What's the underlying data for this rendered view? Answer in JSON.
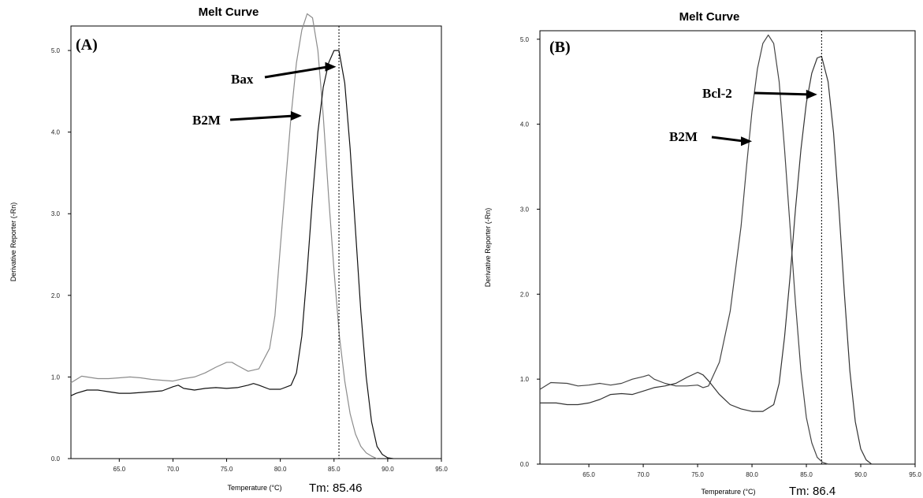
{
  "chart_data": [
    {
      "type": "line",
      "title": "Melt Curve",
      "panel_label": "(A)",
      "xlabel": "Temperature (°C)",
      "ylabel": "Derivative Reporter (-Rn)",
      "xlim": [
        60.5,
        95.0
      ],
      "ylim": [
        0.0,
        5.3
      ],
      "x_ticks": [
        "65.0",
        "70.0",
        "75.0",
        "80.0",
        "85.0",
        "90.0",
        "95.0"
      ],
      "y_ticks": [
        "0.0",
        "1.0",
        "2.0",
        "3.0",
        "4.0",
        "5.0"
      ],
      "tm_label": "Tm: 85.46",
      "tm_line": 85.46,
      "annotations": [
        {
          "text": "Bax",
          "arrow_to": [
            85.2,
            4.8
          ]
        },
        {
          "text": "B2M",
          "arrow_to": [
            82.0,
            4.2
          ]
        }
      ],
      "series": [
        {
          "color": "#8c8c8c",
          "x": [
            60.5,
            61.5,
            63,
            64,
            65,
            66,
            67,
            68,
            69,
            70,
            71,
            72,
            73,
            74,
            75,
            75.5,
            76,
            77,
            78,
            79,
            79.5,
            80,
            80.5,
            81,
            81.5,
            82,
            82.5,
            83,
            83.5,
            84,
            84.5,
            85,
            85.5,
            86,
            86.5,
            87,
            87.5,
            88,
            88.5,
            89
          ],
          "y": [
            0.93,
            1.01,
            0.98,
            0.98,
            0.99,
            1.0,
            0.99,
            0.97,
            0.96,
            0.95,
            0.98,
            1.0,
            1.05,
            1.12,
            1.18,
            1.18,
            1.14,
            1.07,
            1.1,
            1.35,
            1.75,
            2.6,
            3.4,
            4.2,
            4.85,
            5.25,
            5.45,
            5.4,
            5.0,
            4.2,
            3.2,
            2.3,
            1.5,
            0.95,
            0.55,
            0.3,
            0.15,
            0.07,
            0.03,
            0.0
          ]
        },
        {
          "color": "#111111",
          "x": [
            60.5,
            61,
            62,
            63,
            64,
            65,
            66,
            67,
            68,
            69,
            70,
            70.5,
            71,
            72,
            73,
            74,
            75,
            76,
            77,
            77.5,
            78,
            79,
            80,
            81,
            81.5,
            82,
            82.5,
            83,
            83.5,
            84,
            84.5,
            85,
            85.46,
            86,
            86.5,
            87,
            87.5,
            88,
            88.5,
            89,
            89.5,
            90,
            90.5
          ],
          "y": [
            0.77,
            0.8,
            0.84,
            0.84,
            0.82,
            0.8,
            0.8,
            0.81,
            0.82,
            0.83,
            0.88,
            0.9,
            0.86,
            0.84,
            0.86,
            0.87,
            0.86,
            0.87,
            0.9,
            0.92,
            0.9,
            0.85,
            0.85,
            0.9,
            1.05,
            1.5,
            2.3,
            3.2,
            4.0,
            4.55,
            4.85,
            5.0,
            5.0,
            4.6,
            3.8,
            2.8,
            1.8,
            1.0,
            0.45,
            0.15,
            0.05,
            0.01,
            0.0
          ]
        }
      ]
    },
    {
      "type": "line",
      "title": "Melt Curve",
      "panel_label": "(B)",
      "xlabel": "Temperature (°C)",
      "ylabel": "Derivative Reporter (-Rn)",
      "xlim": [
        60.5,
        95.0
      ],
      "ylim": [
        0.0,
        5.1
      ],
      "x_ticks": [
        "65.0",
        "70.0",
        "75.0",
        "80.0",
        "85.0",
        "90.0",
        "95.0"
      ],
      "y_ticks": [
        "0.0",
        "1.0",
        "2.0",
        "3.0",
        "4.0",
        "5.0"
      ],
      "tm_label": "Tm: 86.4",
      "tm_line": 86.4,
      "annotations": [
        {
          "text": "Bcl-2",
          "arrow_to": [
            86.0,
            4.35
          ]
        },
        {
          "text": "B2M",
          "arrow_to": [
            80.0,
            3.8
          ]
        }
      ],
      "series": [
        {
          "color": "#444444",
          "x": [
            60.5,
            61.5,
            63,
            64,
            65,
            66,
            67,
            68,
            69,
            70,
            70.5,
            71,
            72,
            73,
            74,
            75,
            75.5,
            76,
            77,
            78,
            79,
            79.5,
            80,
            80.5,
            81,
            81.5,
            82,
            82.5,
            83,
            83.5,
            84,
            84.5,
            85,
            85.5,
            86,
            86.5,
            87
          ],
          "y": [
            0.88,
            0.96,
            0.95,
            0.92,
            0.93,
            0.95,
            0.93,
            0.95,
            1.0,
            1.03,
            1.05,
            1.0,
            0.95,
            0.92,
            0.92,
            0.93,
            0.9,
            0.92,
            1.2,
            1.8,
            2.8,
            3.5,
            4.15,
            4.65,
            4.95,
            5.05,
            4.95,
            4.5,
            3.7,
            2.8,
            1.9,
            1.1,
            0.55,
            0.25,
            0.08,
            0.02,
            0.0
          ]
        },
        {
          "color": "#333333",
          "x": [
            60.5,
            61,
            62,
            63,
            64,
            65,
            66,
            67,
            68,
            69,
            70,
            71,
            72,
            73,
            74,
            75,
            75.5,
            76,
            77,
            78,
            79,
            80,
            81,
            82,
            82.5,
            83,
            83.5,
            84,
            84.5,
            85,
            85.5,
            86,
            86.4,
            87,
            87.5,
            88,
            88.5,
            89,
            89.5,
            90,
            90.5,
            91
          ],
          "y": [
            0.72,
            0.72,
            0.72,
            0.7,
            0.7,
            0.72,
            0.76,
            0.82,
            0.83,
            0.82,
            0.86,
            0.9,
            0.92,
            0.95,
            1.02,
            1.08,
            1.05,
            0.98,
            0.82,
            0.7,
            0.65,
            0.62,
            0.62,
            0.7,
            0.95,
            1.5,
            2.2,
            3.0,
            3.7,
            4.25,
            4.6,
            4.78,
            4.8,
            4.5,
            3.9,
            3.0,
            2.0,
            1.1,
            0.5,
            0.18,
            0.05,
            0.0
          ]
        }
      ]
    }
  ]
}
